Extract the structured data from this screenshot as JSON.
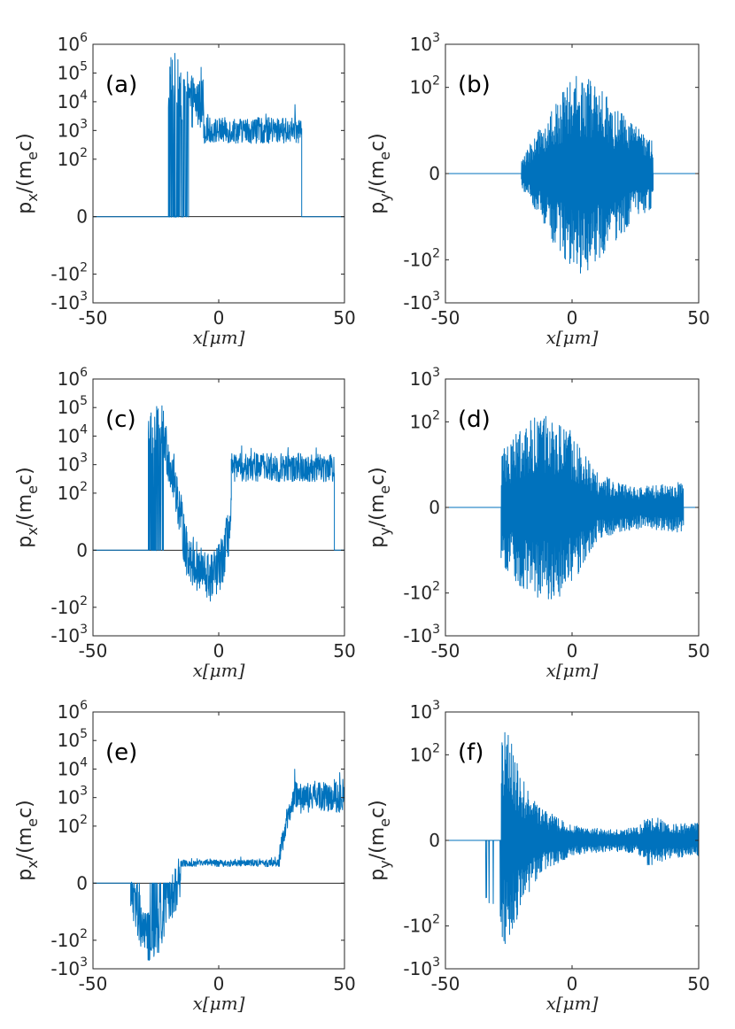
{
  "chart_data": [
    {
      "id": "a",
      "panel_label": "(a)",
      "type": "line",
      "ylabel_base": "p",
      "ylabel_sub": "x",
      "ylabel_mid": "/(m",
      "ylabel_sub2": "e",
      "ylabel_end": "c)",
      "xlabel": "x[μm]",
      "xlim": [
        -50,
        50
      ],
      "xticks": [
        {
          "v": -50,
          "t": "-50"
        },
        {
          "v": 0,
          "t": "0"
        },
        {
          "v": 50,
          "t": "50"
        }
      ],
      "ylim": [
        -3,
        6
      ],
      "yticks": [
        {
          "v": 6,
          "base": "10",
          "exp": "6"
        },
        {
          "v": 5,
          "base": "10",
          "exp": "5"
        },
        {
          "v": 4,
          "base": "10",
          "exp": "4"
        },
        {
          "v": 3,
          "base": "10",
          "exp": "3"
        },
        {
          "v": 2,
          "base": "10",
          "exp": "2"
        },
        {
          "v": 0,
          "base": "0",
          "exp": ""
        },
        {
          "v": -2,
          "base": "-10",
          "exp": "2"
        },
        {
          "v": -3,
          "base": "-10",
          "exp": "3"
        }
      ],
      "segments": [
        {
          "x0": -50,
          "x1": -20,
          "style": "zero"
        },
        {
          "x0": -20,
          "x1": -12,
          "style": "spiky",
          "center": 4.5,
          "amp": 1.2,
          "min": -0.05,
          "max": 5.8,
          "dropout": 0.5
        },
        {
          "x0": -12,
          "x1": -6,
          "style": "noisy",
          "center": 4.0,
          "amp": 0.9,
          "min": 0.3,
          "max": 5.2
        },
        {
          "x0": -6,
          "x1": 33,
          "style": "noisy",
          "center": 3.0,
          "amp": 0.45,
          "min": 2.3,
          "max": 3.9
        },
        {
          "x0": 33,
          "x1": 50,
          "style": "zero"
        }
      ]
    },
    {
      "id": "b",
      "panel_label": "(b)",
      "type": "line",
      "ylabel_base": "p",
      "ylabel_sub": "y",
      "ylabel_mid": "/(m",
      "ylabel_sub2": "e",
      "ylabel_end": "c)",
      "xlabel": "x[μm]",
      "xlim": [
        -50,
        50
      ],
      "xticks": [
        {
          "v": -50,
          "t": "-50"
        },
        {
          "v": 0,
          "t": "0"
        },
        {
          "v": 50,
          "t": "50"
        }
      ],
      "ylim": [
        -3,
        3
      ],
      "yticks": [
        {
          "v": 3,
          "base": "10",
          "exp": "3"
        },
        {
          "v": 2,
          "base": "10",
          "exp": "2"
        },
        {
          "v": 0,
          "base": "0",
          "exp": ""
        },
        {
          "v": -2,
          "base": "-10",
          "exp": "2"
        },
        {
          "v": -3,
          "base": "-10",
          "exp": "3"
        }
      ],
      "segments": [
        {
          "x0": -50,
          "x1": -20,
          "style": "zero"
        },
        {
          "x0": -20,
          "x1": 32,
          "style": "osc",
          "envelope": [
            [
              -20,
              0.3
            ],
            [
              -10,
              1.4
            ],
            [
              0,
              2.2
            ],
            [
              5,
              2.4
            ],
            [
              15,
              1.7
            ],
            [
              25,
              1.1
            ],
            [
              32,
              0.8
            ]
          ]
        },
        {
          "x0": 32,
          "x1": 50,
          "style": "zero"
        }
      ]
    },
    {
      "id": "c",
      "panel_label": "(c)",
      "type": "line",
      "ylabel_base": "p",
      "ylabel_sub": "x",
      "ylabel_mid": "/(m",
      "ylabel_sub2": "e",
      "ylabel_end": "c)",
      "xlabel": "x[μm]",
      "xlim": [
        -50,
        50
      ],
      "xticks": [
        {
          "v": -50,
          "t": "-50"
        },
        {
          "v": 0,
          "t": "0"
        },
        {
          "v": 50,
          "t": "50"
        }
      ],
      "ylim": [
        -3,
        6
      ],
      "yticks": [
        {
          "v": 6,
          "base": "10",
          "exp": "6"
        },
        {
          "v": 5,
          "base": "10",
          "exp": "5"
        },
        {
          "v": 4,
          "base": "10",
          "exp": "4"
        },
        {
          "v": 3,
          "base": "10",
          "exp": "3"
        },
        {
          "v": 2,
          "base": "10",
          "exp": "2"
        },
        {
          "v": 0,
          "base": "0",
          "exp": ""
        },
        {
          "v": -2,
          "base": "-10",
          "exp": "2"
        },
        {
          "v": -3,
          "base": "-10",
          "exp": "3"
        }
      ],
      "segments": [
        {
          "x0": -50,
          "x1": -28,
          "style": "zero"
        },
        {
          "x0": -28,
          "x1": -22,
          "style": "spiky",
          "center": 4.2,
          "amp": 0.9,
          "min": -0.05,
          "max": 5.1,
          "dropout": 0.45
        },
        {
          "x0": -22,
          "x1": 5,
          "style": "trend",
          "pts": [
            [
              -22,
              4.0
            ],
            [
              -17,
              2.2
            ],
            [
              -13,
              0.0
            ],
            [
              -8,
              -0.7
            ],
            [
              -3,
              -1.0
            ],
            [
              1,
              -0.5
            ],
            [
              5,
              1.0
            ]
          ],
          "amp": 0.9
        },
        {
          "x0": 5,
          "x1": 46,
          "style": "noisy",
          "center": 2.9,
          "amp": 0.5,
          "min": 2.0,
          "max": 3.9
        },
        {
          "x0": 46,
          "x1": 50,
          "style": "zero"
        }
      ]
    },
    {
      "id": "d",
      "panel_label": "(d)",
      "type": "line",
      "ylabel_base": "p",
      "ylabel_sub": "y",
      "ylabel_mid": "/(m",
      "ylabel_sub2": "e",
      "ylabel_end": "c)",
      "xlabel": "x[μm]",
      "xlim": [
        -50,
        50
      ],
      "xticks": [
        {
          "v": -50,
          "t": "-50"
        },
        {
          "v": 0,
          "t": "0"
        },
        {
          "v": 50,
          "t": "50"
        }
      ],
      "ylim": [
        -3,
        3
      ],
      "yticks": [
        {
          "v": 3,
          "base": "10",
          "exp": "3"
        },
        {
          "v": 2,
          "base": "10",
          "exp": "2"
        },
        {
          "v": 0,
          "base": "0",
          "exp": ""
        },
        {
          "v": -2,
          "base": "-10",
          "exp": "2"
        },
        {
          "v": -3,
          "base": "-10",
          "exp": "3"
        }
      ],
      "segments": [
        {
          "x0": -50,
          "x1": -28,
          "style": "zero"
        },
        {
          "x0": -28,
          "x1": 44,
          "style": "osc",
          "envelope": [
            [
              -28,
              1.3
            ],
            [
              -20,
              1.9
            ],
            [
              -12,
              2.2
            ],
            [
              -5,
              2.1
            ],
            [
              2,
              1.6
            ],
            [
              10,
              0.8
            ],
            [
              20,
              0.55
            ],
            [
              30,
              0.5
            ],
            [
              44,
              0.6
            ]
          ]
        },
        {
          "x0": 44,
          "x1": 50,
          "style": "zero"
        }
      ]
    },
    {
      "id": "e",
      "panel_label": "(e)",
      "type": "line",
      "ylabel_base": "p",
      "ylabel_sub": "x",
      "ylabel_mid": "/(m",
      "ylabel_sub2": "e",
      "ylabel_end": "c)",
      "xlabel": "x[μm]",
      "xlim": [
        -50,
        50
      ],
      "xticks": [
        {
          "v": -50,
          "t": "-50"
        },
        {
          "v": 0,
          "t": "0"
        },
        {
          "v": 50,
          "t": "50"
        }
      ],
      "ylim": [
        -3,
        6
      ],
      "yticks": [
        {
          "v": 6,
          "base": "10",
          "exp": "6"
        },
        {
          "v": 5,
          "base": "10",
          "exp": "5"
        },
        {
          "v": 4,
          "base": "10",
          "exp": "4"
        },
        {
          "v": 3,
          "base": "10",
          "exp": "3"
        },
        {
          "v": 2,
          "base": "10",
          "exp": "2"
        },
        {
          "v": 0,
          "base": "0",
          "exp": ""
        },
        {
          "v": -2,
          "base": "-10",
          "exp": "2"
        },
        {
          "v": -3,
          "base": "-10",
          "exp": "3"
        }
      ],
      "segments": [
        {
          "x0": -50,
          "x1": -35,
          "style": "zero"
        },
        {
          "x0": -35,
          "x1": -15,
          "style": "trend",
          "pts": [
            [
              -35,
              -0.3
            ],
            [
              -30,
              -1.6
            ],
            [
              -26,
              -2.2
            ],
            [
              -22,
              -1.2
            ],
            [
              -18,
              -0.3
            ],
            [
              -15,
              0.4
            ]
          ],
          "amp": 0.9,
          "sparse": true
        },
        {
          "x0": -15,
          "x1": 24,
          "style": "noisy",
          "center": 0.7,
          "amp": 0.12,
          "min": 0.4,
          "max": 1.0
        },
        {
          "x0": 24,
          "x1": 30,
          "style": "trend",
          "pts": [
            [
              24,
              0.8
            ],
            [
              27,
              2.2
            ],
            [
              30,
              3.0
            ]
          ],
          "amp": 0.4
        },
        {
          "x0": 30,
          "x1": 50,
          "style": "noisy",
          "center": 3.0,
          "amp": 0.55,
          "min": 2.0,
          "max": 4.0
        }
      ]
    },
    {
      "id": "f",
      "panel_label": "(f)",
      "type": "line",
      "ylabel_base": "p",
      "ylabel_sub": "y",
      "ylabel_mid": "/(m",
      "ylabel_sub2": "e",
      "ylabel_end": "c)",
      "xlabel": "x[μm]",
      "xlim": [
        -50,
        50
      ],
      "xticks": [
        {
          "v": -50,
          "t": "-50"
        },
        {
          "v": 0,
          "t": "0"
        },
        {
          "v": 50,
          "t": "50"
        }
      ],
      "ylim": [
        -3,
        3
      ],
      "yticks": [
        {
          "v": 3,
          "base": "10",
          "exp": "3"
        },
        {
          "v": 2,
          "base": "10",
          "exp": "2"
        },
        {
          "v": 0,
          "base": "0",
          "exp": ""
        },
        {
          "v": -2,
          "base": "-10",
          "exp": "2"
        },
        {
          "v": -3,
          "base": "-10",
          "exp": "3"
        }
      ],
      "segments": [
        {
          "x0": -50,
          "x1": -35,
          "style": "zero"
        },
        {
          "x0": -35,
          "x1": -28,
          "style": "sparse-neg",
          "depth": 1.8
        },
        {
          "x0": -28,
          "x1": 50,
          "style": "osc",
          "envelope": [
            [
              -28,
              2.6
            ],
            [
              -25,
              2.5
            ],
            [
              -20,
              1.5
            ],
            [
              -12,
              0.75
            ],
            [
              0,
              0.35
            ],
            [
              15,
              0.25
            ],
            [
              26,
              0.3
            ],
            [
              30,
              0.6
            ],
            [
              40,
              0.4
            ],
            [
              50,
              0.4
            ]
          ]
        }
      ]
    }
  ]
}
